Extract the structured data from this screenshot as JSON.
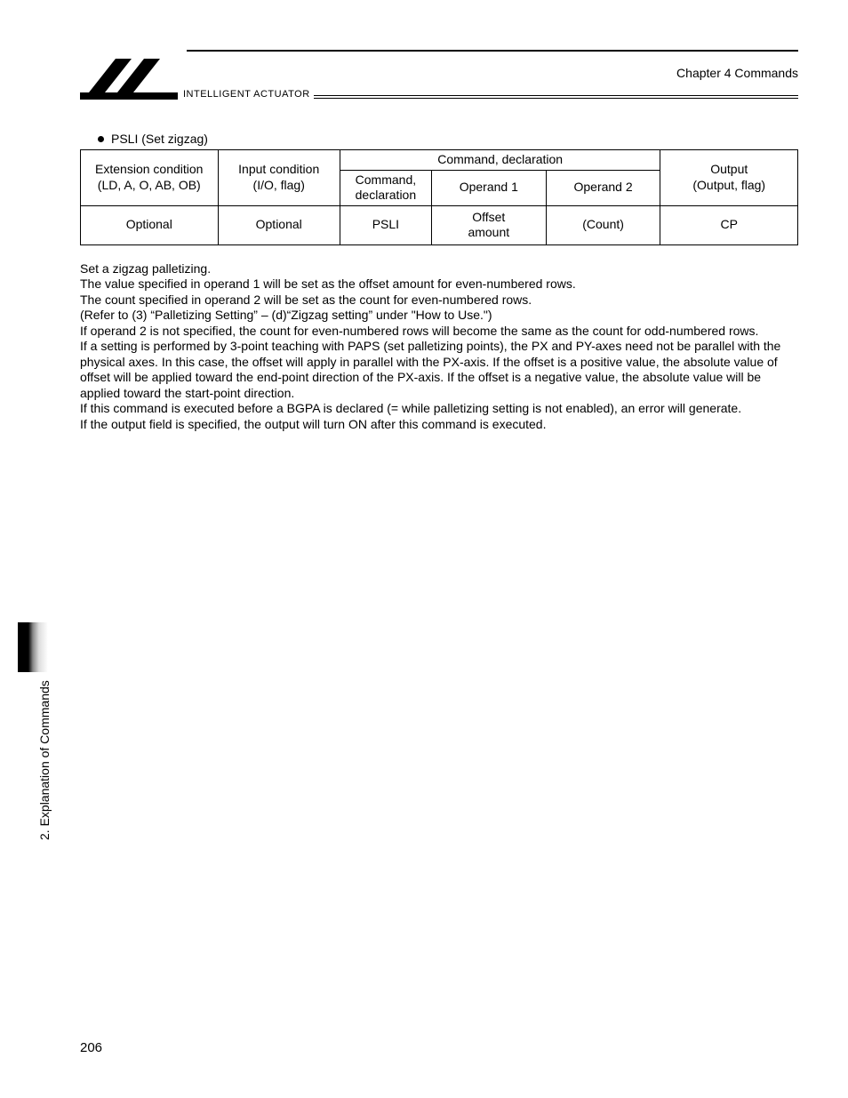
{
  "header": {
    "brand_subtext": "INTELLIGENT ACTUATOR",
    "chapter": "Chapter 4   Commands"
  },
  "section": {
    "bullet_title": "PSLI (Set zigzag)"
  },
  "table": {
    "headers": {
      "ext_cond_1": "Extension condition",
      "ext_cond_2": "(LD, A, O, AB, OB)",
      "input_cond_1": "Input condition",
      "input_cond_2": "(I/O, flag)",
      "cmd_decl_group": "Command, declaration",
      "cmd_decl": "Command, declaration",
      "op1": "Operand 1",
      "op2": "Operand 2",
      "output_1": "Output",
      "output_2": "(Output, flag)"
    },
    "row": {
      "ext": "Optional",
      "input": "Optional",
      "cmd": "PSLI",
      "op1": "Offset amount",
      "op2": "(Count)",
      "out": "CP"
    },
    "col_widths": [
      "18%",
      "16%",
      "12%",
      "15%",
      "15%",
      "18%"
    ]
  },
  "body": {
    "p1": "Set a zigzag palletizing.",
    "p2": "The value specified in operand 1 will be set as the offset amount for even-numbered rows.",
    "p3": "The count specified in operand 2 will be set as the count for even-numbered rows.",
    "p4": "(Refer to (3) “Palletizing Setting” – (d)“Zigzag setting” under \"How to Use.\")",
    "p5": "If operand 2 is not specified, the count for even-numbered rows will become the same as the count for odd-numbered rows.",
    "p6": "If a setting is performed by 3-point teaching with PAPS (set palletizing points), the PX and PY-axes need not be parallel with the physical axes. In this case, the offset will apply in parallel with the PX-axis. If the offset is a positive value, the absolute value of offset will be applied toward the end-point direction of the PX-axis. If the offset is a negative value, the absolute value will be applied toward the start-point direction.",
    "p7": "If this command is executed before a BGPA is declared (= while palletizing setting is not enabled), an error will generate.",
    "p8": "If the output field is specified, the output will turn ON after this command is executed."
  },
  "side": {
    "label": "2. Explanation of Commands"
  },
  "page_number": "206"
}
